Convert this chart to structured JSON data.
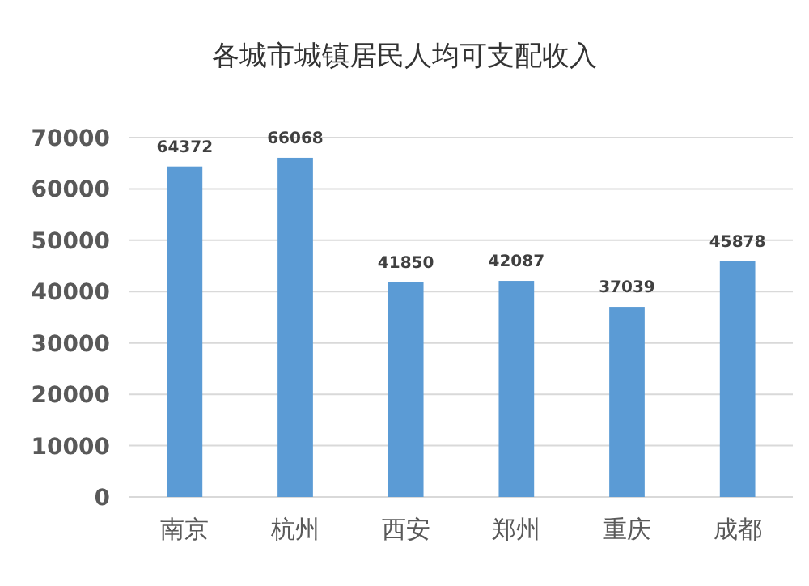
{
  "chart_data": {
    "type": "bar",
    "title": "各城市城镇居民人均可支配收入",
    "categories": [
      "南京",
      "杭州",
      "西安",
      "郑州",
      "重庆",
      "成都"
    ],
    "values": [
      64372,
      66068,
      41850,
      42087,
      37039,
      45878
    ],
    "color": "#5b9bd5",
    "ylim": [
      0,
      70000
    ],
    "yticks": [
      0,
      10000,
      20000,
      30000,
      40000,
      50000,
      60000,
      70000
    ],
    "grid": "y",
    "data_labels": true
  }
}
